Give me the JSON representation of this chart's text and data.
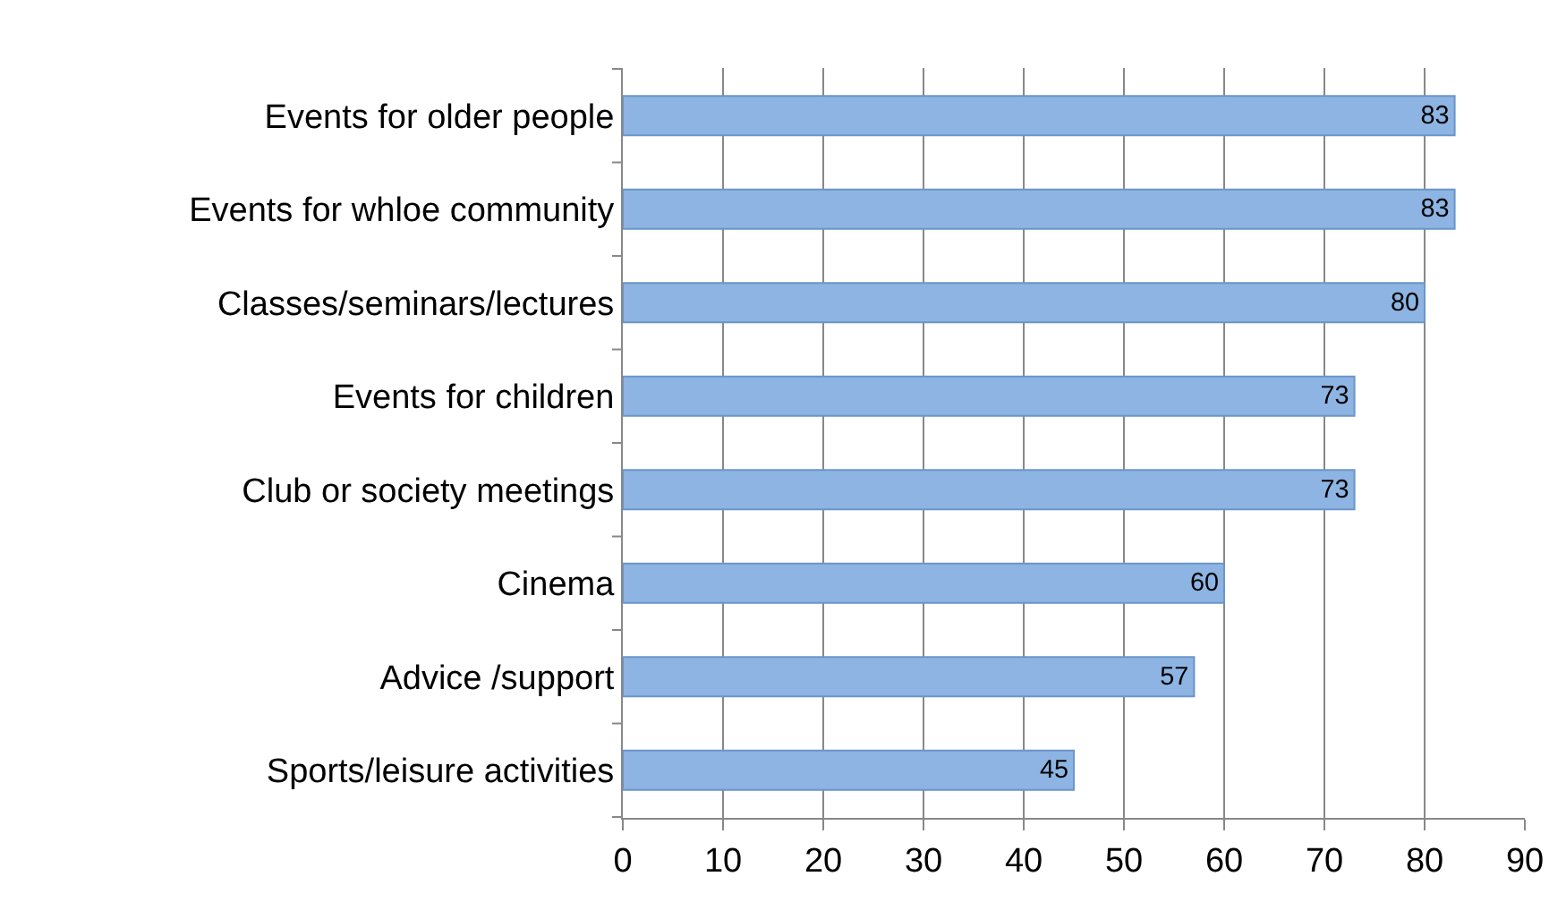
{
  "chart_data": {
    "type": "bar",
    "orientation": "horizontal",
    "categories": [
      "Events for older people",
      "Events for whloe community",
      "Classes/seminars/lectures",
      "Events for children",
      "Club or society meetings",
      "Cinema",
      "Advice /support",
      "Sports/leisure activities"
    ],
    "values": [
      83,
      83,
      80,
      73,
      73,
      60,
      57,
      45
    ],
    "color": "#8db4e2",
    "xlim": [
      0,
      90
    ],
    "xticks": [
      0,
      10,
      20,
      30,
      40,
      50,
      60,
      70,
      80,
      90
    ],
    "grid": "x",
    "data_labels": true,
    "legend": false
  }
}
